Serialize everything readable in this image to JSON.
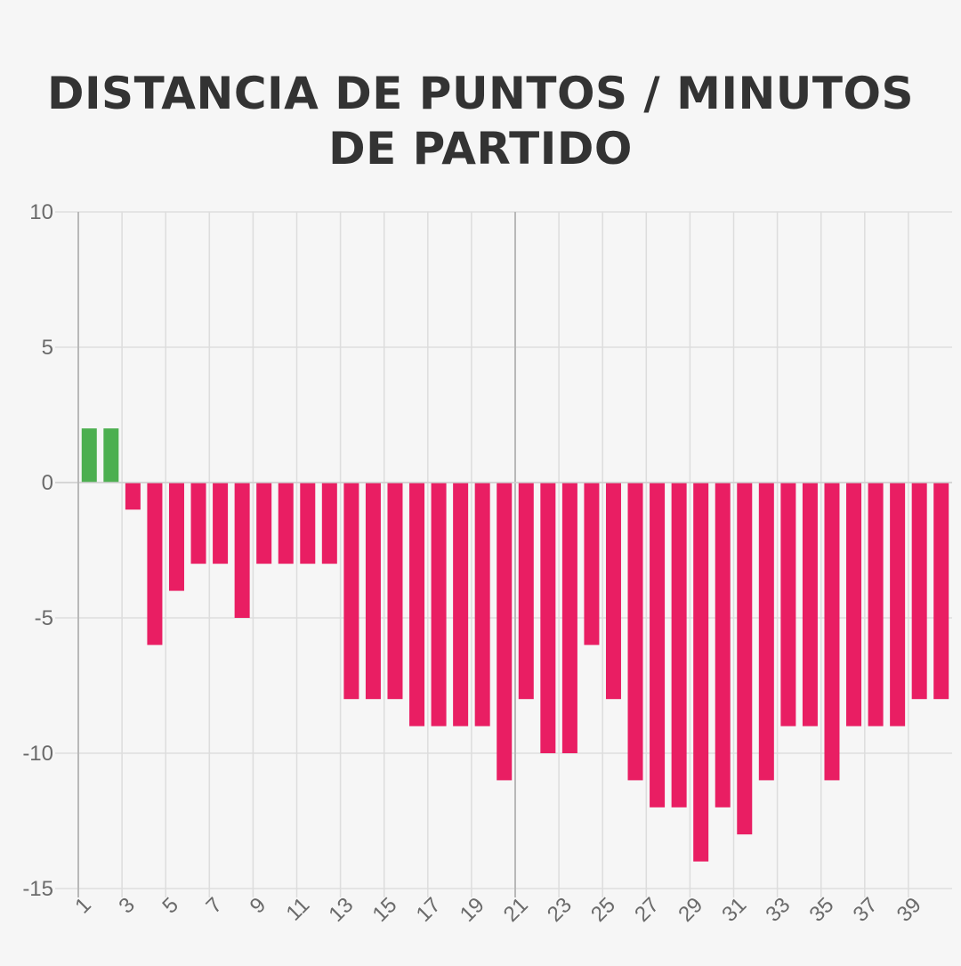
{
  "chart_data": {
    "type": "bar",
    "title": "DISTANCIA DE PUNTOS / MINUTOS DE PARTIDO",
    "xlabel": "",
    "ylabel": "",
    "ylim": [
      -15,
      10
    ],
    "y_ticks": [
      10,
      5,
      0,
      -5,
      -10,
      -15
    ],
    "x_tick_labels": [
      "1",
      "3",
      "5",
      "7",
      "9",
      "11",
      "13",
      "15",
      "17",
      "19",
      "21",
      "23",
      "25",
      "27",
      "29",
      "31",
      "33",
      "35",
      "37",
      "39"
    ],
    "categories": [
      1,
      2,
      3,
      4,
      5,
      6,
      7,
      8,
      9,
      10,
      11,
      12,
      13,
      14,
      15,
      16,
      17,
      18,
      19,
      20,
      21,
      22,
      23,
      24,
      25,
      26,
      27,
      28,
      29,
      30,
      31,
      32,
      33,
      34,
      35,
      36,
      37,
      38,
      39,
      40
    ],
    "values": [
      2,
      2,
      -1,
      -6,
      -4,
      -3,
      -3,
      -5,
      -3,
      -3,
      -3,
      -3,
      -8,
      -8,
      -8,
      -9,
      -9,
      -9,
      -9,
      -11,
      -8,
      -10,
      -10,
      -6,
      -8,
      -11,
      -12,
      -12,
      -14,
      -12,
      -13,
      -11,
      -9,
      -9,
      -11,
      -9,
      -9,
      -9,
      -8,
      -8
    ],
    "grid": true,
    "legend": "none",
    "colors": {
      "positive": "#4caf50",
      "negative": "#e91e63",
      "grid": "#dddddd",
      "axis": "#b8b8b8",
      "text": "#333333"
    }
  }
}
